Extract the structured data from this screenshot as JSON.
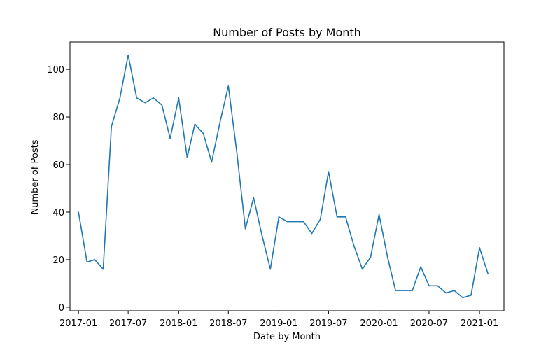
{
  "chart_data": {
    "type": "line",
    "title": "Number of Posts by Month",
    "xlabel": "Date by Month",
    "ylabel": "Number of Posts",
    "grid": false,
    "legend": "none",
    "series": [
      {
        "color": "#1f77b4",
        "x": [
          "2017-01",
          "2017-02",
          "2017-03",
          "2017-04",
          "2017-05",
          "2017-06",
          "2017-07",
          "2017-08",
          "2017-09",
          "2017-10",
          "2017-11",
          "2017-12",
          "2018-01",
          "2018-02",
          "2018-03",
          "2018-04",
          "2018-05",
          "2018-06",
          "2018-07",
          "2018-08",
          "2018-09",
          "2018-10",
          "2018-11",
          "2018-12",
          "2019-01",
          "2019-02",
          "2019-03",
          "2019-04",
          "2019-05",
          "2019-06",
          "2019-07",
          "2019-08",
          "2019-09",
          "2019-10",
          "2019-11",
          "2019-12",
          "2020-01",
          "2020-02",
          "2020-03",
          "2020-04",
          "2020-05",
          "2020-06",
          "2020-07",
          "2020-08",
          "2020-09",
          "2020-10",
          "2020-11",
          "2020-12",
          "2021-01",
          "2021-02"
        ],
        "y": [
          40,
          19,
          20,
          16,
          76,
          88,
          106,
          88,
          86,
          88,
          85,
          71,
          88,
          63,
          77,
          73,
          61,
          78,
          93,
          65,
          33,
          46,
          30,
          16,
          38,
          36,
          36,
          36,
          31,
          37,
          57,
          38,
          38,
          26,
          16,
          21,
          39,
          21,
          7,
          7,
          7,
          17,
          9,
          9,
          6,
          7,
          4,
          5,
          25,
          14
        ]
      }
    ],
    "xlim": [
      "2016-12-01",
      "2021-03-31"
    ],
    "ylim": [
      -1.5,
      111.5
    ],
    "x_ticks": [
      "2017-01",
      "2017-07",
      "2018-01",
      "2018-07",
      "2019-01",
      "2019-07",
      "2020-01",
      "2020-07",
      "2021-01"
    ],
    "y_ticks": [
      0,
      20,
      40,
      60,
      80,
      100
    ]
  }
}
